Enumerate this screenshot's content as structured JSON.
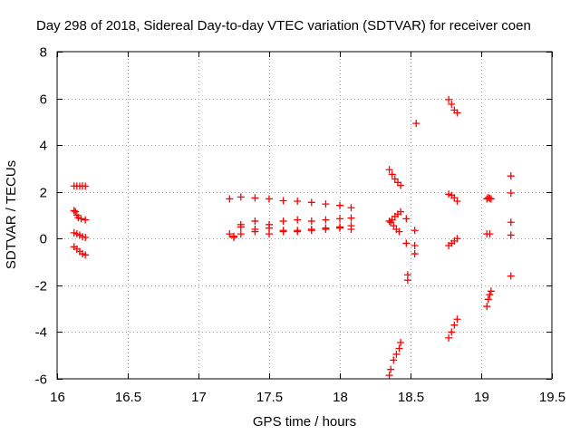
{
  "chart_data": {
    "type": "scatter",
    "title": "Day 298 of 2018, Sidereal Day-to-day VTEC variation (SDTVAR) for receiver coen",
    "xlabel": "GPS time / hours",
    "ylabel": "SDTVAR / TECUs",
    "xlim": [
      16,
      19.5
    ],
    "ylim": [
      -6,
      8
    ],
    "xticks": [
      16,
      16.5,
      17,
      17.5,
      18,
      18.5,
      19,
      19.5
    ],
    "xtick_labels": [
      "16",
      "16.5",
      "17",
      "17.5",
      "18",
      "18.5",
      "19",
      "19.5"
    ],
    "yticks": [
      -6,
      -4,
      -2,
      0,
      2,
      4,
      6,
      8
    ],
    "ytick_labels": [
      "-6",
      "-4",
      "-2",
      "0",
      "2",
      "4",
      "6",
      "8"
    ],
    "grid": true,
    "marker": "+",
    "marker_color": "#ff0000",
    "series": [
      {
        "name": "s1",
        "x": [
          16.12,
          16.14,
          16.16,
          16.18,
          16.2
        ],
        "y": [
          2.25,
          2.25,
          2.24,
          2.25,
          2.24
        ]
      },
      {
        "name": "s2",
        "x": [
          16.12,
          16.13,
          16.14,
          16.15,
          16.17,
          16.2
        ],
        "y": [
          1.2,
          1.15,
          1.0,
          0.9,
          0.85,
          0.8
        ]
      },
      {
        "name": "s3",
        "x": [
          16.12,
          16.14,
          16.16,
          16.18,
          16.2
        ],
        "y": [
          0.25,
          0.2,
          0.15,
          0.08,
          0.05
        ]
      },
      {
        "name": "s4",
        "x": [
          16.12,
          16.14,
          16.16,
          16.18,
          16.2
        ],
        "y": [
          -0.35,
          -0.45,
          -0.55,
          -0.65,
          -0.7
        ]
      },
      {
        "name": "s5",
        "x": [
          17.22,
          17.3,
          17.4,
          17.5,
          17.6,
          17.7,
          17.8,
          17.9,
          18.0,
          18.08
        ],
        "y": [
          1.7,
          1.78,
          1.74,
          1.7,
          1.62,
          1.6,
          1.55,
          1.48,
          1.42,
          1.32
        ]
      },
      {
        "name": "s6",
        "x": [
          17.22,
          17.3,
          17.4,
          17.5,
          17.6,
          17.7,
          17.8,
          17.9,
          18.0,
          18.08
        ],
        "y": [
          0.2,
          0.6,
          0.75,
          0.6,
          0.75,
          0.8,
          0.75,
          0.8,
          0.85,
          0.88
        ]
      },
      {
        "name": "s7",
        "x": [
          17.25,
          17.3,
          17.4,
          17.5,
          17.6,
          17.7,
          17.8,
          17.9,
          18.0,
          18.08
        ],
        "y": [
          0.1,
          0.2,
          0.4,
          0.45,
          0.35,
          0.3,
          0.35,
          0.4,
          0.45,
          0.4
        ]
      },
      {
        "name": "s8",
        "x": [
          17.25,
          17.3,
          17.4,
          17.5,
          17.6,
          17.7,
          17.8,
          17.9,
          18.0,
          18.08
        ],
        "y": [
          0.05,
          0.5,
          0.3,
          0.2,
          0.3,
          0.35,
          0.4,
          0.45,
          0.5,
          0.55
        ]
      },
      {
        "name": "s9",
        "x": [
          18.35,
          18.37,
          18.39,
          18.41,
          18.43
        ],
        "y": [
          2.95,
          2.75,
          2.55,
          2.4,
          2.28
        ]
      },
      {
        "name": "s10",
        "x": [
          18.35,
          18.37,
          18.39,
          18.41,
          18.43
        ],
        "y": [
          0.75,
          0.8,
          0.95,
          1.05,
          1.15
        ]
      },
      {
        "name": "s11",
        "x": [
          18.36,
          18.38,
          18.4,
          18.42
        ],
        "y": [
          0.7,
          0.55,
          0.4,
          0.3
        ]
      },
      {
        "name": "s12",
        "x": [
          18.47,
          18.53,
          18.53,
          18.53
        ],
        "y": [
          0.85,
          0.35,
          -0.3,
          -0.65
        ]
      },
      {
        "name": "s13",
        "x": [
          18.47,
          18.48,
          18.48
        ],
        "y": [
          -0.2,
          -1.55,
          -1.78
        ]
      },
      {
        "name": "s14",
        "x": [
          18.35,
          18.36,
          18.38,
          18.4,
          18.42,
          18.43
        ],
        "y": [
          -5.85,
          -5.6,
          -5.2,
          -4.95,
          -4.7,
          -4.45
        ]
      },
      {
        "name": "s15",
        "x": [
          18.54
        ],
        "y": [
          4.93
        ]
      },
      {
        "name": "s16",
        "x": [
          18.77,
          18.79,
          18.81,
          18.83
        ],
        "y": [
          5.95,
          5.75,
          5.5,
          5.38
        ]
      },
      {
        "name": "s17",
        "x": [
          18.77,
          18.79,
          18.81,
          18.83
        ],
        "y": [
          1.9,
          1.85,
          1.75,
          1.6
        ]
      },
      {
        "name": "s18",
        "x": [
          18.77,
          18.79,
          18.81,
          18.83
        ],
        "y": [
          -0.3,
          -0.2,
          -0.1,
          0.0
        ]
      },
      {
        "name": "s19",
        "x": [
          18.77,
          18.79,
          18.81,
          18.83
        ],
        "y": [
          -4.25,
          -4.0,
          -3.7,
          -3.45
        ]
      },
      {
        "name": "s20",
        "x": [
          19.04,
          19.05,
          19.06,
          19.07
        ],
        "y": [
          1.7,
          1.75,
          1.72,
          1.7
        ]
      },
      {
        "name": "s21",
        "x": [
          19.04,
          19.06
        ],
        "y": [
          0.2,
          0.2
        ]
      },
      {
        "name": "s22",
        "x": [
          19.04,
          19.05,
          19.06,
          19.07
        ],
        "y": [
          -2.9,
          -2.6,
          -2.4,
          -2.25
        ]
      },
      {
        "name": "s23",
        "x": [
          19.21,
          19.21,
          19.21,
          19.21,
          19.21
        ],
        "y": [
          2.68,
          1.95,
          0.7,
          0.15,
          -1.6
        ]
      }
    ]
  }
}
